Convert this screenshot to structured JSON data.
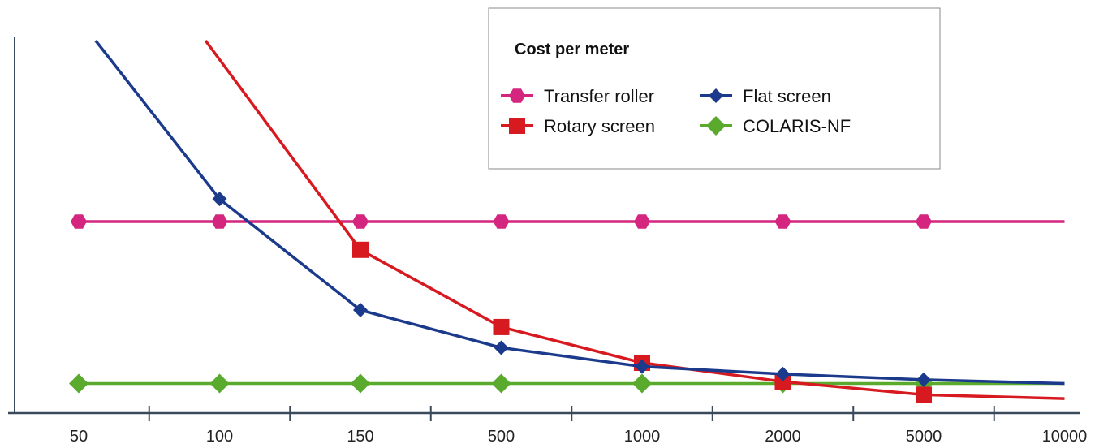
{
  "chart_data": {
    "type": "line",
    "title": "",
    "xlabel": "",
    "ylabel": "",
    "categories": [
      "50",
      "100",
      "150",
      "500",
      "1000",
      "2000",
      "5000",
      "10000"
    ],
    "ylim": [
      0,
      100
    ],
    "legend": {
      "title": "Cost per meter",
      "placement": "top-right"
    },
    "series": [
      {
        "name": "Transfer roller",
        "color": "#d4267f",
        "marker": "hexagon",
        "points": [
          [
            0,
            50
          ],
          [
            1,
            50
          ],
          [
            2,
            50
          ],
          [
            3,
            50
          ],
          [
            4,
            50
          ],
          [
            5,
            50
          ],
          [
            6,
            50
          ],
          [
            7,
            50
          ]
        ],
        "marked": [
          0,
          1,
          2,
          3,
          4,
          5,
          6
        ]
      },
      {
        "name": "Rotary screen",
        "color": "#d71920",
        "marker": "square",
        "points": [
          [
            0.9,
            101
          ],
          [
            2,
            42.5
          ],
          [
            3,
            22
          ],
          [
            4,
            12.5
          ],
          [
            5,
            7.5
          ],
          [
            6,
            4
          ],
          [
            7,
            3
          ]
        ],
        "marked": [
          1,
          2,
          3,
          4,
          5
        ]
      },
      {
        "name": "Flat screen",
        "color": "#1b3a8c",
        "marker": "diamond",
        "points": [
          [
            0.12,
            101
          ],
          [
            1,
            56
          ],
          [
            2,
            26.5
          ],
          [
            3,
            16.5
          ],
          [
            4,
            11.5
          ],
          [
            5,
            9.5
          ],
          [
            6,
            8
          ],
          [
            7,
            7
          ]
        ],
        "marked": [
          1,
          2,
          3,
          4,
          5,
          6
        ]
      },
      {
        "name": "COLARIS-NF",
        "color": "#5aaa2e",
        "marker": "diamond-large",
        "points": [
          [
            0,
            7
          ],
          [
            1,
            7
          ],
          [
            2,
            7
          ],
          [
            3,
            7
          ],
          [
            4,
            7
          ],
          [
            5,
            7
          ],
          [
            6,
            7
          ],
          [
            7,
            7
          ]
        ],
        "marked": [
          0,
          1,
          2,
          3,
          4,
          5,
          6
        ]
      }
    ]
  }
}
